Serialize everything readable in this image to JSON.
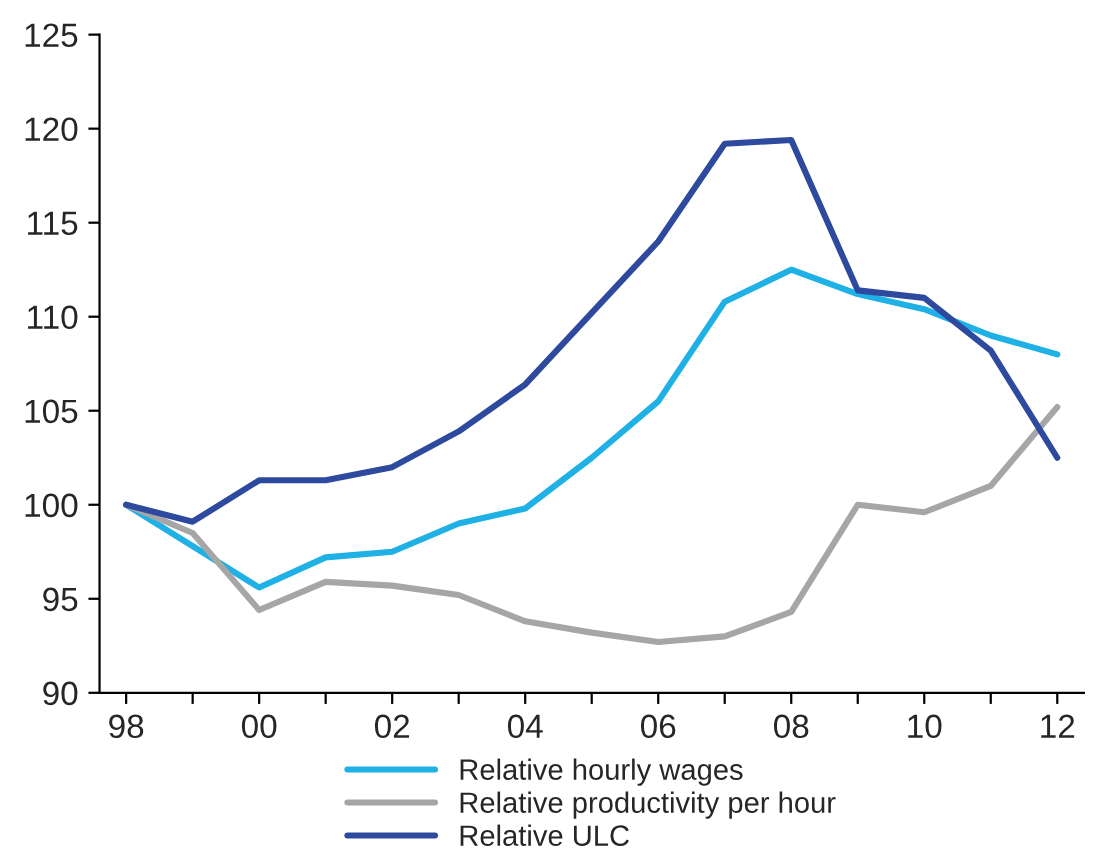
{
  "chart_data": {
    "type": "line",
    "x": [
      1998,
      1999,
      2000,
      2001,
      2002,
      2003,
      2004,
      2005,
      2006,
      2007,
      2008,
      2009,
      2010,
      2011,
      2012
    ],
    "series": [
      {
        "name": "Relative hourly wages",
        "color": "#1fb0e6",
        "values": [
          100,
          97.8,
          95.6,
          97.2,
          97.5,
          99.0,
          99.8,
          102.5,
          105.5,
          110.8,
          112.5,
          111.2,
          110.4,
          109.0,
          108.0
        ]
      },
      {
        "name": "Relative productivity per hour",
        "color": "#a6a6a6",
        "values": [
          100,
          98.5,
          94.4,
          95.9,
          95.7,
          95.2,
          93.8,
          93.2,
          92.7,
          93.0,
          94.3,
          100.0,
          99.6,
          101.0,
          105.2
        ]
      },
      {
        "name": "Relative ULC",
        "color": "#2e4a9e",
        "values": [
          100,
          99.1,
          101.3,
          101.3,
          102.0,
          103.9,
          106.4,
          110.2,
          114.0,
          119.2,
          119.4,
          111.4,
          111.0,
          108.2,
          102.5
        ]
      }
    ],
    "xlim": [
      1997.6,
      2012.4
    ],
    "xticks": [
      {
        "value": 1998,
        "label": "98"
      },
      {
        "value": 1999,
        "label": null
      },
      {
        "value": 2000,
        "label": "00"
      },
      {
        "value": 2001,
        "label": null
      },
      {
        "value": 2002,
        "label": "02"
      },
      {
        "value": 2003,
        "label": null
      },
      {
        "value": 2004,
        "label": "04"
      },
      {
        "value": 2005,
        "label": null
      },
      {
        "value": 2006,
        "label": "06"
      },
      {
        "value": 2007,
        "label": null
      },
      {
        "value": 2008,
        "label": "08"
      },
      {
        "value": 2009,
        "label": null
      },
      {
        "value": 2010,
        "label": "10"
      },
      {
        "value": 2011,
        "label": null
      },
      {
        "value": 2012,
        "label": "12"
      }
    ],
    "ylim": [
      90,
      125
    ],
    "yticks": [
      90,
      95,
      100,
      105,
      110,
      115,
      120,
      125
    ],
    "grid": false,
    "legend": "bottom",
    "marker": "none",
    "line_style": "solid"
  }
}
